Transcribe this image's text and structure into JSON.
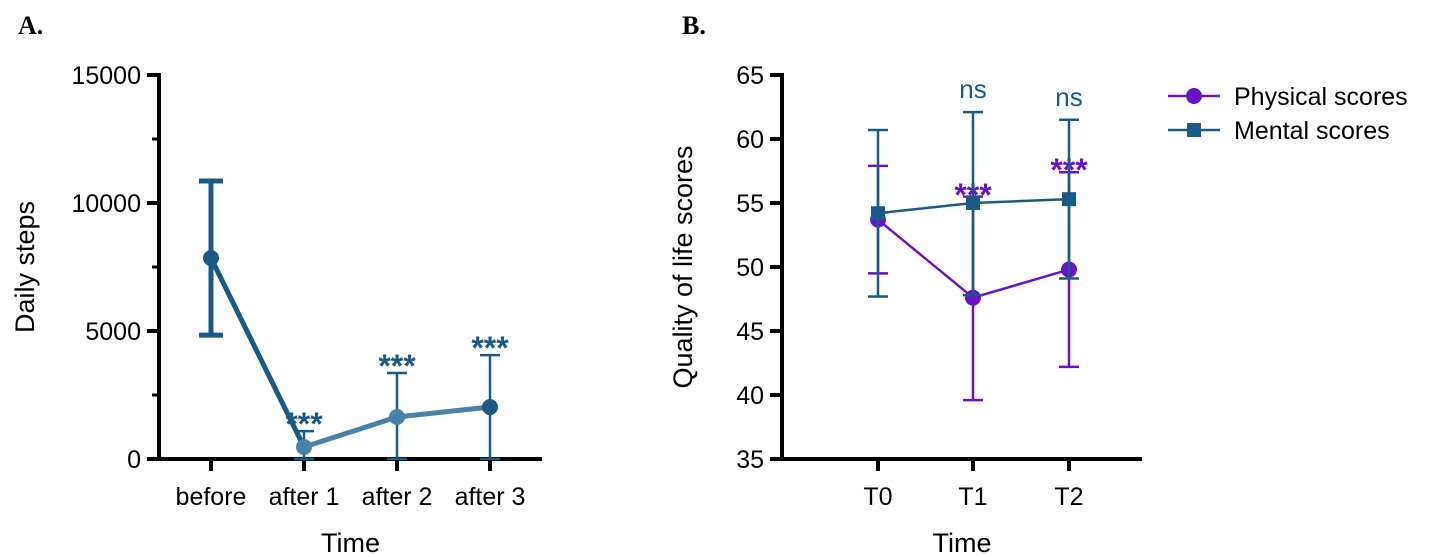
{
  "chart_data": [
    {
      "panel_label": "A.",
      "type": "line",
      "xlabel": "Time",
      "ylabel": "Daily steps",
      "ylim": [
        0,
        15000
      ],
      "yticks": [
        "0",
        "5000",
        "10000",
        "15000"
      ],
      "categories": [
        "before",
        "after 1",
        "after 2",
        "after 3"
      ],
      "series": [
        {
          "name": "Daily steps",
          "color": "#1b5a86",
          "values": [
            7850,
            470,
            1640,
            2030
          ],
          "err_upper": [
            10860,
            1090,
            3360,
            4060
          ],
          "err_lower": [
            4840,
            0,
            0,
            0
          ],
          "annotations": [
            "",
            "***",
            "***",
            "***"
          ]
        }
      ]
    },
    {
      "panel_label": "B.",
      "type": "line",
      "xlabel": "Time",
      "ylabel": "Quality of life scores",
      "ylim": [
        35,
        65
      ],
      "yticks": [
        "35",
        "40",
        "45",
        "50",
        "55",
        "60",
        "65"
      ],
      "categories": [
        "T0",
        "T1",
        "T2"
      ],
      "legend_position": "top-right",
      "series": [
        {
          "name": "Physical scores",
          "color": "#6a12c8",
          "marker": "circle",
          "values": [
            53.7,
            47.6,
            49.8
          ],
          "err_upper": [
            57.9,
            55.5,
            57.4
          ],
          "err_lower": [
            49.5,
            39.6,
            42.2
          ],
          "annotations": [
            "",
            "***",
            "***"
          ]
        },
        {
          "name": "Mental scores",
          "color": "#1b5a86",
          "marker": "square",
          "values": [
            54.2,
            55.0,
            55.3
          ],
          "err_upper": [
            60.7,
            62.1,
            61.5
          ],
          "err_lower": [
            47.7,
            47.8,
            49.1
          ],
          "annotations": [
            "",
            "ns",
            "ns"
          ]
        }
      ]
    }
  ]
}
